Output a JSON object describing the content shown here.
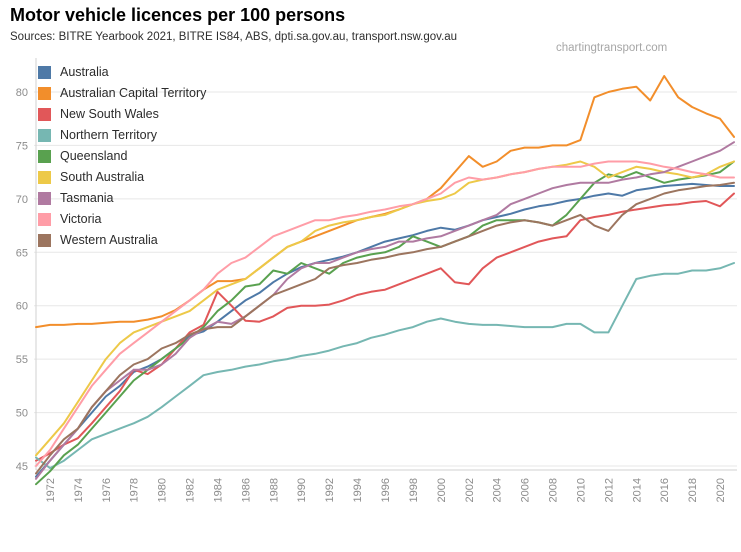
{
  "header": {
    "title": "Motor vehicle licences per 100 persons",
    "sources": "Sources: BITRE Yearbook 2021, BITRE IS84, ABS, dpti.sa.gov.au, transport.nsw.gov.au",
    "watermark": "chartingtransport.com"
  },
  "chart_data": {
    "type": "line",
    "title": "Motor vehicle licences per 100 persons",
    "xlabel": "",
    "ylabel": "",
    "xlim": [
      1971,
      2021
    ],
    "ylim": [
      44.5,
      83
    ],
    "grid": "horizontal",
    "legend_position": "top-left",
    "y_ticks": [
      45,
      50,
      55,
      60,
      65,
      70,
      75,
      80
    ],
    "x_tick_labels": [
      "1972",
      "1974",
      "1976",
      "1978",
      "1980",
      "1982",
      "1984",
      "1986",
      "1988",
      "1990",
      "1992",
      "1994",
      "1996",
      "1998",
      "2000",
      "2002",
      "2004",
      "2006",
      "2008",
      "2010",
      "2012",
      "2014",
      "2016",
      "2018",
      "2020"
    ],
    "x": [
      1971,
      1972,
      1973,
      1974,
      1975,
      1976,
      1977,
      1978,
      1979,
      1980,
      1981,
      1982,
      1983,
      1984,
      1985,
      1986,
      1987,
      1988,
      1989,
      1990,
      1991,
      1992,
      1993,
      1994,
      1995,
      1996,
      1997,
      1998,
      1999,
      2000,
      2001,
      2002,
      2003,
      2004,
      2005,
      2006,
      2007,
      2008,
      2009,
      2010,
      2011,
      2012,
      2013,
      2014,
      2015,
      2016,
      2017,
      2018,
      2019,
      2020,
      2021
    ],
    "series": [
      {
        "name": "Australia",
        "color": "#4e79a7",
        "values": [
          44.0,
          45.5,
          47.0,
          48.5,
          50.0,
          51.5,
          52.5,
          53.8,
          54.3,
          55.0,
          56.0,
          57.2,
          57.6,
          58.5,
          59.5,
          60.5,
          61.2,
          62.2,
          63.0,
          63.6,
          64.0,
          64.3,
          64.6,
          65.0,
          65.5,
          66.0,
          66.3,
          66.6,
          67.0,
          67.3,
          67.1,
          67.5,
          68.0,
          68.3,
          68.6,
          69.0,
          69.3,
          69.5,
          69.8,
          70.0,
          70.3,
          70.5,
          70.3,
          70.8,
          71.0,
          71.2,
          71.3,
          71.4,
          71.3,
          71.2,
          71.2
        ]
      },
      {
        "name": "Australian Capital Territory",
        "color": "#f28e2b",
        "values": [
          58.0,
          58.2,
          58.2,
          58.3,
          58.3,
          58.4,
          58.5,
          58.5,
          58.7,
          59.0,
          59.6,
          60.5,
          61.5,
          62.3,
          62.3,
          62.5,
          63.5,
          64.5,
          65.5,
          66.0,
          66.5,
          67.0,
          67.5,
          68.0,
          68.3,
          68.6,
          69.0,
          69.5,
          70.0,
          71.0,
          72.5,
          74.0,
          73.0,
          73.5,
          74.5,
          74.8,
          74.8,
          75.0,
          75.0,
          75.5,
          79.5,
          80.0,
          80.3,
          80.5,
          79.2,
          81.5,
          79.5,
          78.6,
          78.0,
          77.5,
          75.8
        ]
      },
      {
        "name": "New South Wales",
        "color": "#e15759",
        "values": [
          45.5,
          46.2,
          47.0,
          47.6,
          49.0,
          50.5,
          52.0,
          54.0,
          53.6,
          54.5,
          56.0,
          57.5,
          58.2,
          61.3,
          60.0,
          58.6,
          58.5,
          59.0,
          59.8,
          60.0,
          60.0,
          60.1,
          60.5,
          61.0,
          61.3,
          61.5,
          62.0,
          62.5,
          63.0,
          63.5,
          62.2,
          62.0,
          63.5,
          64.5,
          65.0,
          65.5,
          66.0,
          66.3,
          66.5,
          68.0,
          68.3,
          68.5,
          68.8,
          69.0,
          69.2,
          69.4,
          69.5,
          69.7,
          69.8,
          69.3,
          70.5
        ]
      },
      {
        "name": "Northern Territory",
        "color": "#76b7b2",
        "values": [
          45.8,
          44.8,
          45.5,
          46.5,
          47.5,
          48.0,
          48.5,
          49.0,
          49.6,
          50.5,
          51.5,
          52.5,
          53.5,
          53.8,
          54.0,
          54.3,
          54.5,
          54.8,
          55.0,
          55.3,
          55.5,
          55.8,
          56.2,
          56.5,
          57.0,
          57.3,
          57.7,
          58.0,
          58.5,
          58.8,
          58.5,
          58.3,
          58.2,
          58.2,
          58.1,
          58.0,
          58.0,
          58.0,
          58.3,
          58.3,
          57.5,
          57.5,
          60.0,
          62.5,
          62.8,
          63.0,
          63.0,
          63.3,
          63.3,
          63.5,
          64.0
        ]
      },
      {
        "name": "Queensland",
        "color": "#59a14f",
        "values": [
          43.3,
          44.5,
          46.0,
          47.0,
          48.5,
          50.0,
          51.5,
          53.0,
          54.0,
          55.0,
          56.0,
          57.0,
          58.0,
          59.5,
          60.5,
          61.8,
          62.0,
          63.3,
          63.0,
          64.0,
          63.5,
          63.0,
          64.0,
          64.5,
          64.8,
          65.0,
          65.5,
          66.5,
          66.0,
          65.5,
          66.0,
          66.5,
          67.5,
          68.0,
          68.0,
          68.0,
          67.8,
          67.5,
          68.5,
          70.0,
          71.5,
          72.3,
          72.0,
          72.5,
          72.0,
          71.5,
          71.8,
          72.0,
          72.2,
          72.5,
          73.5
        ]
      },
      {
        "name": "South Australia",
        "color": "#edc948",
        "values": [
          46.0,
          47.5,
          49.0,
          51.0,
          53.0,
          55.0,
          56.5,
          57.5,
          58.0,
          58.5,
          59.0,
          59.5,
          60.5,
          61.5,
          62.0,
          62.5,
          63.5,
          64.5,
          65.5,
          66.0,
          67.0,
          67.5,
          67.8,
          68.0,
          68.3,
          68.5,
          69.0,
          69.5,
          69.8,
          70.0,
          70.5,
          71.5,
          71.8,
          72.0,
          72.3,
          72.5,
          72.8,
          73.0,
          73.2,
          73.5,
          73.0,
          72.0,
          72.5,
          73.0,
          72.8,
          72.5,
          72.3,
          72.0,
          72.3,
          73.0,
          73.5
        ]
      },
      {
        "name": "Tasmania",
        "color": "#b07aa1",
        "values": [
          43.8,
          45.5,
          47.0,
          48.5,
          50.5,
          52.0,
          53.0,
          54.0,
          54.0,
          54.5,
          55.5,
          57.0,
          57.8,
          58.5,
          58.3,
          59.0,
          60.0,
          61.0,
          62.5,
          63.5,
          64.0,
          64.0,
          64.5,
          65.0,
          65.3,
          65.5,
          66.0,
          66.0,
          66.3,
          66.5,
          67.0,
          67.5,
          68.0,
          68.5,
          69.5,
          70.0,
          70.5,
          71.0,
          71.3,
          71.5,
          71.5,
          71.5,
          71.8,
          72.0,
          72.3,
          72.5,
          73.0,
          73.5,
          74.0,
          74.5,
          75.3
        ]
      },
      {
        "name": "Victoria",
        "color": "#ff9da7",
        "values": [
          45.0,
          46.5,
          48.5,
          50.5,
          52.5,
          54.0,
          55.5,
          56.5,
          57.5,
          58.5,
          59.5,
          60.5,
          61.5,
          63.0,
          64.0,
          64.5,
          65.5,
          66.5,
          67.0,
          67.5,
          68.0,
          68.0,
          68.3,
          68.5,
          68.8,
          69.0,
          69.3,
          69.5,
          70.0,
          70.5,
          71.5,
          72.0,
          71.8,
          72.0,
          72.3,
          72.5,
          72.8,
          73.0,
          73.0,
          73.0,
          73.3,
          73.5,
          73.5,
          73.5,
          73.3,
          73.0,
          72.8,
          72.5,
          72.3,
          72.0,
          72.0
        ]
      },
      {
        "name": "Western Australia",
        "color": "#9c755f",
        "values": [
          44.3,
          46.0,
          47.5,
          48.5,
          50.5,
          52.0,
          53.5,
          54.5,
          55.0,
          56.0,
          56.5,
          57.3,
          57.8,
          58.0,
          58.0,
          59.0,
          60.0,
          61.0,
          61.5,
          62.0,
          62.5,
          63.5,
          63.8,
          64.0,
          64.3,
          64.5,
          64.8,
          65.0,
          65.3,
          65.5,
          66.0,
          66.5,
          67.0,
          67.5,
          67.8,
          68.0,
          67.8,
          67.5,
          68.0,
          68.5,
          67.5,
          67.0,
          68.5,
          69.5,
          70.0,
          70.5,
          70.8,
          71.0,
          71.2,
          71.3,
          71.5
        ]
      }
    ]
  }
}
